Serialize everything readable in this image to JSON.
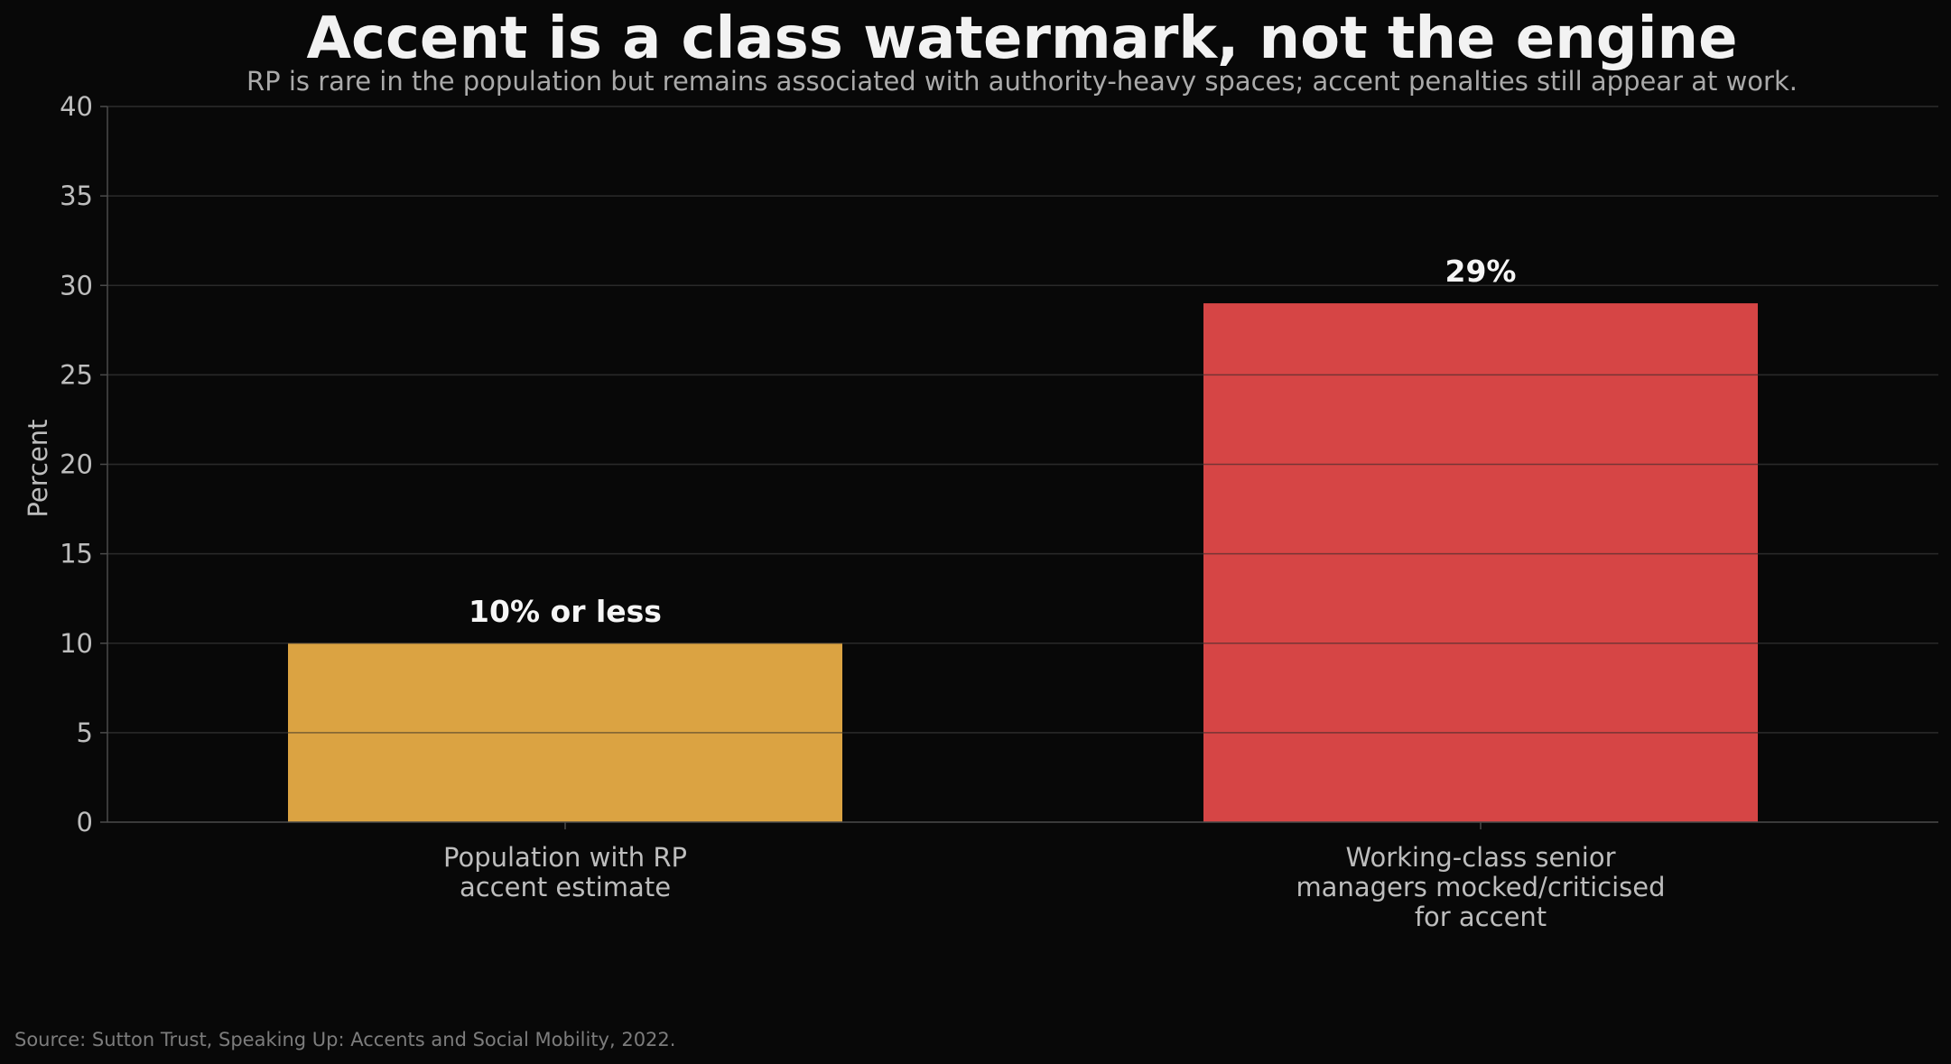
{
  "chart_data": {
    "type": "bar",
    "title": "Accent is a class watermark, not the engine",
    "subtitle": "RP is rare in the population but remains associated with authority-heavy spaces; accent penalties still appear at work.",
    "xlabel": "",
    "ylabel": "Percent",
    "ylim": [
      0,
      40
    ],
    "yticks": [
      0,
      5,
      10,
      15,
      20,
      25,
      30,
      35,
      40
    ],
    "grid": true,
    "categories": [
      [
        "Population with RP",
        "accent estimate"
      ],
      [
        "Working-class senior",
        "managers mocked/criticised",
        "for accent"
      ]
    ],
    "values": [
      10,
      29
    ],
    "data_labels": [
      "10% or less",
      "29%"
    ],
    "colors": [
      "#DBA342",
      "#D64545"
    ],
    "source": "Source: Sutton Trust, Speaking Up: Accents and Social Mobility, 2022."
  },
  "colors": {
    "background": "#080808",
    "grid": "#2a2a2a",
    "axis": "#4a4a4a"
  }
}
